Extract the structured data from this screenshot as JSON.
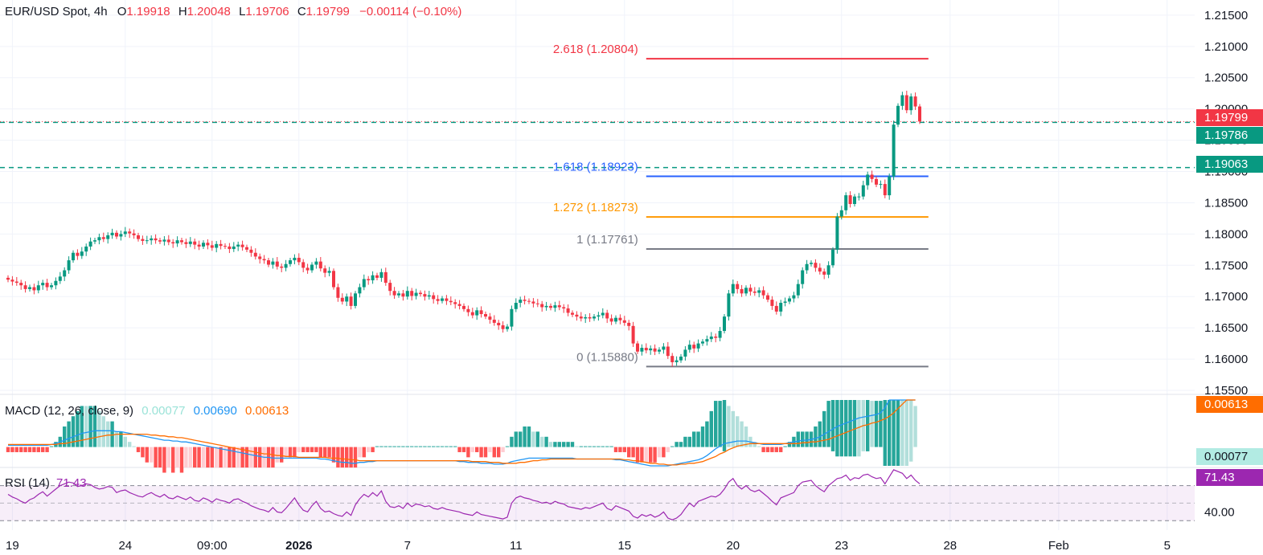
{
  "header": {
    "symbol": "EUR/USD Spot, 4h",
    "o_label": "O",
    "o_value": "1.19918",
    "h_label": "H",
    "h_value": "1.20048",
    "l_label": "L",
    "l_value": "1.19706",
    "c_label": "C",
    "c_value": "1.19799",
    "change": "−0.00114 (−0.10%)"
  },
  "macd_legend": {
    "label": "MACD (12, 26, close, 9)",
    "hist": "0.00077",
    "macd": "0.00690",
    "signal": "0.00613"
  },
  "rsi_legend": {
    "label": "RSI (14)",
    "value": "71.43"
  },
  "price_tags": {
    "last": "1.19799",
    "level1": "1.19786",
    "level2": "1.19063",
    "macd_signal": "0.00613",
    "macd_hist": "0.00077",
    "rsi": "71.43"
  },
  "colors": {
    "up": "#089981",
    "down": "#f23645",
    "macd": "#2196f3",
    "signal": "#ff6d00",
    "rsi": "#9c27b0"
  },
  "chart_data": {
    "type": "candlestick",
    "ylim": [
      1.155,
      1.2155
    ],
    "price_ticks": [
      "1.21500",
      "1.21000",
      "1.20500",
      "1.20000",
      "1.19500",
      "1.19000",
      "1.18500",
      "1.18000",
      "1.17500",
      "1.17000",
      "1.16500",
      "1.16000",
      "1.15500"
    ],
    "x_ticks": [
      {
        "label": "19",
        "bar": 1,
        "bold": false
      },
      {
        "label": "24",
        "bar": 27,
        "bold": false
      },
      {
        "label": "09:00",
        "bar": 47,
        "bold": false
      },
      {
        "label": "2026",
        "bar": 67,
        "bold": true
      },
      {
        "label": "7",
        "bar": 92,
        "bold": false
      },
      {
        "label": "11",
        "bar": 117,
        "bold": false
      },
      {
        "label": "15",
        "bar": 142,
        "bold": false
      },
      {
        "label": "20",
        "bar": 167,
        "bold": false
      },
      {
        "label": "23",
        "bar": 192,
        "bold": false
      },
      {
        "label": "28",
        "bar": 217,
        "bold": false
      },
      {
        "label": "Feb",
        "bar": 242,
        "bold": false
      },
      {
        "label": "5",
        "bar": 267,
        "bold": false
      }
    ],
    "fib_levels": [
      {
        "label": "2.618 (1.20804)",
        "price": 1.20804,
        "color": "#f23645"
      },
      {
        "label": "1.618 (1.18923)",
        "price": 1.18923,
        "color": "#2962ff"
      },
      {
        "label": "1.272 (1.18273)",
        "price": 1.18273,
        "color": "#ff9800"
      },
      {
        "label": "1 (1.17761)",
        "price": 1.17761,
        "color": "#787b86"
      },
      {
        "label": "0 (1.15880)",
        "price": 1.1588,
        "color": "#787b86"
      }
    ],
    "fib_start_bar": 147,
    "fib_end_bar": 212,
    "horizontal_levels": [
      {
        "price": 1.19786,
        "style": "dashed",
        "color": "#089981"
      },
      {
        "price": 1.19063,
        "style": "dashed",
        "color": "#089981"
      },
      {
        "price": 1.19799,
        "style": "dotted",
        "color": "#f23645"
      }
    ],
    "closes": [
      1.1727,
      1.1724,
      1.1722,
      1.1718,
      1.1712,
      1.1715,
      1.171,
      1.1718,
      1.1722,
      1.1715,
      1.1718,
      1.1725,
      1.1732,
      1.1742,
      1.1758,
      1.177,
      1.1765,
      1.1772,
      1.178,
      1.1788,
      1.179,
      1.1795,
      1.1792,
      1.1798,
      1.1802,
      1.1796,
      1.18,
      1.1804,
      1.1801,
      1.1798,
      1.1792,
      1.1789,
      1.179,
      1.1793,
      1.179,
      1.1788,
      1.1791,
      1.1787,
      1.1785,
      1.179,
      1.1787,
      1.1784,
      1.1788,
      1.1783,
      1.178,
      1.1786,
      1.1782,
      1.1778,
      1.1784,
      1.1781,
      1.178,
      1.1776,
      1.178,
      1.1783,
      1.1779,
      1.1775,
      1.177,
      1.1764,
      1.176,
      1.1758,
      1.1751,
      1.1756,
      1.1748,
      1.1746,
      1.1752,
      1.1758,
      1.1762,
      1.1755,
      1.1746,
      1.1742,
      1.1751,
      1.1756,
      1.1745,
      1.1738,
      1.1741,
      1.1715,
      1.1698,
      1.1692,
      1.17,
      1.1685,
      1.1705,
      1.1715,
      1.1728,
      1.1726,
      1.1734,
      1.173,
      1.1739,
      1.1722,
      1.1709,
      1.1702,
      1.1705,
      1.17,
      1.1709,
      1.1701,
      1.1706,
      1.1704,
      1.17,
      1.1702,
      1.1696,
      1.1693,
      1.1697,
      1.1693,
      1.1691,
      1.1688,
      1.1685,
      1.168,
      1.1675,
      1.167,
      1.1678,
      1.1672,
      1.1668,
      1.1663,
      1.1658,
      1.1654,
      1.1648,
      1.1652,
      1.168,
      1.169,
      1.1695,
      1.1693,
      1.1692,
      1.1689,
      1.1688,
      1.1683,
      1.1685,
      1.1682,
      1.1686,
      1.1683,
      1.1681,
      1.1674,
      1.1671,
      1.1668,
      1.1665,
      1.1667,
      1.1665,
      1.1668,
      1.167,
      1.1674,
      1.1665,
      1.166,
      1.1666,
      1.1662,
      1.1658,
      1.1653,
      1.1625,
      1.1612,
      1.1618,
      1.1614,
      1.1617,
      1.1612,
      1.1615,
      1.162,
      1.1605,
      1.1595,
      1.1598,
      1.1604,
      1.1615,
      1.1623,
      1.1617,
      1.1625,
      1.1628,
      1.1632,
      1.1636,
      1.1634,
      1.1645,
      1.1668,
      1.1705,
      1.172,
      1.1712,
      1.1705,
      1.1714,
      1.1708,
      1.1706,
      1.171,
      1.1702,
      1.1695,
      1.1685,
      1.1676,
      1.169,
      1.1692,
      1.1697,
      1.1702,
      1.172,
      1.1742,
      1.1752,
      1.1754,
      1.1746,
      1.174,
      1.1735,
      1.175,
      1.1775,
      1.1828,
      1.1838,
      1.1862,
      1.1848,
      1.186,
      1.186,
      1.1878,
      1.1895,
      1.1888,
      1.1879,
      1.188,
      1.1862,
      1.1892,
      1.1975,
      1.2005,
      1.2022,
      1.1998,
      1.202,
      1.2004,
      1.198
    ],
    "macd": [
      0.0002,
      0.0002,
      0.0002,
      0.0002,
      0.0002,
      0.0002,
      0.0002,
      0.0002,
      0.0002,
      0.0002,
      0.0003,
      0.0004,
      0.0006,
      0.0008,
      0.001,
      0.0012,
      0.0014,
      0.0016,
      0.0017,
      0.0018,
      0.0019,
      0.0019,
      0.0019,
      0.0019,
      0.0019,
      0.0018,
      0.0018,
      0.0017,
      0.0016,
      0.0015,
      0.0014,
      0.0013,
      0.0012,
      0.0011,
      0.001,
      0.0009,
      0.0008,
      0.0008,
      0.0007,
      0.0007,
      0.0006,
      0.0006,
      0.0005,
      0.0004,
      0.0003,
      0.0002,
      0.0001,
      0.0,
      -0.0001,
      -0.0002,
      -0.0003,
      -0.0004,
      -0.0005,
      -0.0006,
      -0.0007,
      -0.0008,
      -0.0009,
      -0.001,
      -0.0011,
      -0.0012,
      -0.0012,
      -0.0013,
      -0.0013,
      -0.0013,
      -0.0013,
      -0.0013,
      -0.0013,
      -0.0013,
      -0.0013,
      -0.0013,
      -0.0013,
      -0.0013,
      -0.0014,
      -0.0014,
      -0.0015,
      -0.0016,
      -0.0017,
      -0.0018,
      -0.0018,
      -0.0019,
      -0.0019,
      -0.0018,
      -0.0018,
      -0.0017,
      -0.0017,
      -0.0016,
      -0.0016,
      -0.0016,
      -0.0016,
      -0.0016,
      -0.0016,
      -0.0016,
      -0.0016,
      -0.0016,
      -0.0016,
      -0.0016,
      -0.0016,
      -0.0016,
      -0.0016,
      -0.0016,
      -0.0016,
      -0.0016,
      -0.0016,
      -0.0016,
      -0.0017,
      -0.0017,
      -0.0018,
      -0.0018,
      -0.0018,
      -0.0019,
      -0.0019,
      -0.0019,
      -0.002,
      -0.002,
      -0.002,
      -0.0019,
      -0.0017,
      -0.0016,
      -0.0015,
      -0.0014,
      -0.0013,
      -0.0013,
      -0.0013,
      -0.0013,
      -0.0013,
      -0.0013,
      -0.0013,
      -0.0013,
      -0.0013,
      -0.0013,
      -0.0013,
      -0.0014,
      -0.0014,
      -0.0014,
      -0.0014,
      -0.0014,
      -0.0014,
      -0.0014,
      -0.0014,
      -0.0014,
      -0.0015,
      -0.0015,
      -0.0016,
      -0.0017,
      -0.0018,
      -0.0019,
      -0.002,
      -0.0021,
      -0.0022,
      -0.0022,
      -0.0022,
      -0.0022,
      -0.0022,
      -0.0021,
      -0.002,
      -0.0019,
      -0.0018,
      -0.0017,
      -0.0016,
      -0.0015,
      -0.0013,
      -0.001,
      -0.0006,
      -0.0002,
      0.0001,
      0.0004,
      0.0005,
      0.0006,
      0.0007,
      0.0007,
      0.0007,
      0.0006,
      0.0005,
      0.0004,
      0.0003,
      0.0003,
      0.0003,
      0.0003,
      0.0003,
      0.0004,
      0.0005,
      0.0006,
      0.0007,
      0.0008,
      0.0008,
      0.0009,
      0.001,
      0.0012,
      0.0015,
      0.0018,
      0.0021,
      0.0024,
      0.0026,
      0.0028,
      0.003,
      0.0032,
      0.0034,
      0.0035,
      0.0036,
      0.0037,
      0.0038,
      0.004,
      0.0046,
      0.0055,
      0.0062,
      0.0069,
      0.0072,
      0.0072,
      0.007,
      0.0069
    ],
    "signal": [
      0.0003,
      0.0003,
      0.0003,
      0.0003,
      0.0003,
      0.0003,
      0.0003,
      0.0003,
      0.0003,
      0.0003,
      0.0003,
      0.0003,
      0.0004,
      0.0004,
      0.0005,
      0.0006,
      0.0007,
      0.0008,
      0.0009,
      0.001,
      0.0011,
      0.0012,
      0.0013,
      0.0014,
      0.0014,
      0.0015,
      0.0015,
      0.0015,
      0.0015,
      0.0015,
      0.0015,
      0.0015,
      0.0015,
      0.0014,
      0.0014,
      0.0013,
      0.0013,
      0.0012,
      0.0012,
      0.0011,
      0.0011,
      0.001,
      0.0009,
      0.0008,
      0.0007,
      0.0006,
      0.0005,
      0.0004,
      0.0003,
      0.0002,
      0.0001,
      0.0,
      -0.0001,
      -0.0002,
      -0.0003,
      -0.0004,
      -0.0005,
      -0.0006,
      -0.0007,
      -0.0008,
      -0.0008,
      -0.0009,
      -0.001,
      -0.001,
      -0.0011,
      -0.0011,
      -0.0011,
      -0.0012,
      -0.0012,
      -0.0012,
      -0.0012,
      -0.0012,
      -0.0012,
      -0.0012,
      -0.0013,
      -0.0013,
      -0.0013,
      -0.0014,
      -0.0014,
      -0.0015,
      -0.0015,
      -0.0016,
      -0.0016,
      -0.0016,
      -0.0016,
      -0.0016,
      -0.0016,
      -0.0016,
      -0.0016,
      -0.0016,
      -0.0016,
      -0.0016,
      -0.0016,
      -0.0016,
      -0.0016,
      -0.0016,
      -0.0016,
      -0.0016,
      -0.0016,
      -0.0016,
      -0.0016,
      -0.0016,
      -0.0016,
      -0.0016,
      -0.0016,
      -0.0016,
      -0.0016,
      -0.0017,
      -0.0017,
      -0.0017,
      -0.0017,
      -0.0018,
      -0.0018,
      -0.0018,
      -0.0019,
      -0.0019,
      -0.0019,
      -0.0019,
      -0.0018,
      -0.0018,
      -0.0017,
      -0.0016,
      -0.0016,
      -0.0015,
      -0.0015,
      -0.0014,
      -0.0014,
      -0.0014,
      -0.0014,
      -0.0014,
      -0.0014,
      -0.0014,
      -0.0014,
      -0.0014,
      -0.0014,
      -0.0014,
      -0.0014,
      -0.0014,
      -0.0014,
      -0.0014,
      -0.0014,
      -0.0014,
      -0.0015,
      -0.0015,
      -0.0016,
      -0.0016,
      -0.0017,
      -0.0018,
      -0.0019,
      -0.0019,
      -0.002,
      -0.002,
      -0.0021,
      -0.0021,
      -0.0021,
      -0.002,
      -0.002,
      -0.0019,
      -0.0019,
      -0.0018,
      -0.0017,
      -0.0015,
      -0.0013,
      -0.0011,
      -0.0008,
      -0.0006,
      -0.0003,
      -0.0001,
      0.0001,
      0.0002,
      0.0003,
      0.0004,
      0.0004,
      0.0004,
      0.0004,
      0.0004,
      0.0004,
      0.0004,
      0.0004,
      0.0004,
      0.0004,
      0.0004,
      0.0004,
      0.0005,
      0.0005,
      0.0006,
      0.0006,
      0.0007,
      0.0008,
      0.0009,
      0.0011,
      0.0013,
      0.0015,
      0.0017,
      0.0019,
      0.0021,
      0.0023,
      0.0025,
      0.0026,
      0.0028,
      0.0029,
      0.0031,
      0.0033,
      0.0036,
      0.004,
      0.0045,
      0.005,
      0.0055,
      0.0058,
      0.0061
    ],
    "rsi": [
      60,
      57,
      55,
      52,
      50,
      54,
      56,
      60,
      63,
      58,
      62,
      66,
      70,
      72,
      74,
      73,
      69,
      70,
      72,
      71,
      68,
      66,
      67,
      69,
      68,
      62,
      64,
      65,
      62,
      60,
      58,
      57,
      60,
      62,
      59,
      57,
      60,
      56,
      55,
      58,
      56,
      54,
      57,
      53,
      52,
      56,
      54,
      51,
      55,
      53,
      52,
      50,
      54,
      55,
      52,
      50,
      47,
      45,
      43,
      42,
      40,
      45,
      40,
      39,
      44,
      50,
      56,
      48,
      42,
      40,
      47,
      52,
      44,
      40,
      41,
      38,
      36,
      35,
      40,
      36,
      48,
      55,
      60,
      57,
      62,
      58,
      64,
      52,
      46,
      45,
      47,
      44,
      50,
      46,
      49,
      48,
      46,
      47,
      44,
      43,
      45,
      43,
      42,
      41,
      40,
      38,
      37,
      36,
      40,
      37,
      36,
      35,
      34,
      33,
      32,
      34,
      50,
      56,
      58,
      56,
      55,
      53,
      52,
      50,
      51,
      49,
      52,
      50,
      49,
      46,
      45,
      44,
      43,
      45,
      44,
      46,
      48,
      50,
      44,
      42,
      47,
      45,
      43,
      41,
      35,
      33,
      37,
      35,
      37,
      34,
      36,
      40,
      33,
      31,
      33,
      37,
      44,
      50,
      46,
      52,
      54,
      56,
      58,
      57,
      60,
      66,
      74,
      78,
      70,
      66,
      70,
      65,
      63,
      65,
      61,
      57,
      52,
      48,
      56,
      58,
      60,
      62,
      70,
      74,
      75,
      76,
      70,
      66,
      63,
      70,
      74,
      78,
      79,
      82,
      76,
      79,
      78,
      82,
      83,
      80,
      78,
      79,
      72,
      80,
      88,
      86,
      84,
      78,
      82,
      76,
      72
    ]
  }
}
